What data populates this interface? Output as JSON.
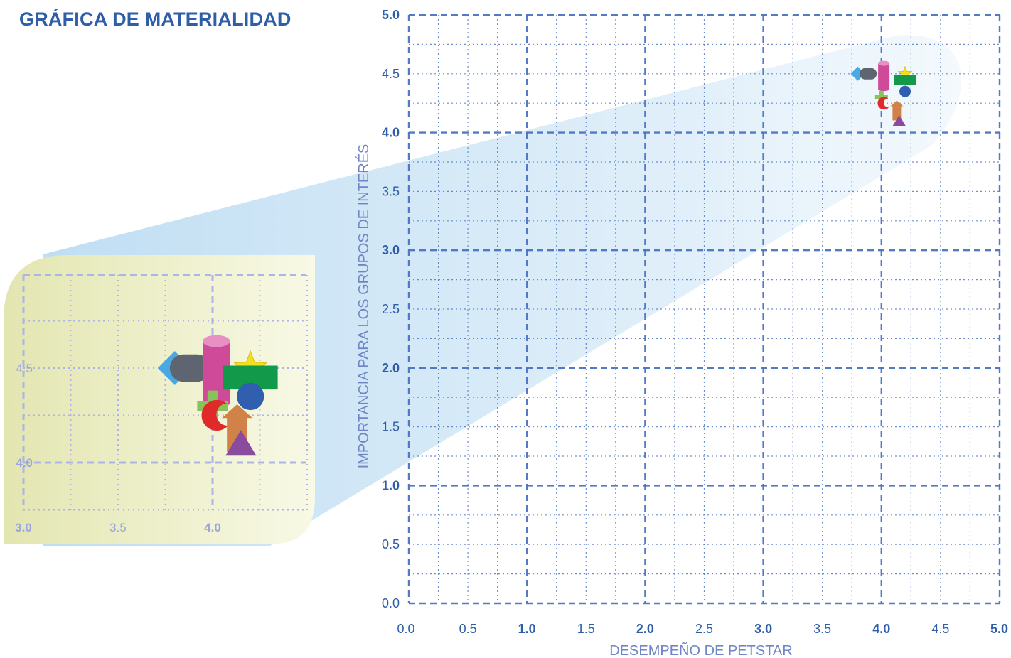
{
  "title": "GRÁFICA DE MATERIALIDAD",
  "chart_data": {
    "type": "scatter",
    "title": "GRÁFICA DE MATERIALIDAD",
    "xlabel": "DESEMPEÑO DE PETSTAR",
    "ylabel": "IMPORTANCIA PARA LOS GRUPOS DE INTERÉS",
    "xlim": [
      0,
      5
    ],
    "ylim": [
      0,
      5
    ],
    "grid": true,
    "x_ticks": [
      "0.0",
      "0.5",
      "1.0",
      "1.5",
      "2.0",
      "2.5",
      "3.0",
      "3.5",
      "4.0",
      "4.5",
      "5.0"
    ],
    "y_ticks": [
      "0.0",
      "0.5",
      "1.0",
      "1.5",
      "2.0",
      "2.5",
      "3.0",
      "3.5",
      "4.0",
      "4.5",
      "5.0"
    ],
    "points": [
      {
        "shape": "diamond",
        "color": "#4aa9e3",
        "x": 3.8,
        "y": 4.5
      },
      {
        "shape": "capsule",
        "color": "#5e6570",
        "x": 3.9,
        "y": 4.5
      },
      {
        "shape": "cylinder",
        "color": "#d04a9a",
        "x": 4.02,
        "y": 4.48
      },
      {
        "shape": "star",
        "color": "#f2df1e",
        "x": 4.2,
        "y": 4.5
      },
      {
        "shape": "rectangle",
        "color": "#13994a",
        "x": 4.2,
        "y": 4.45
      },
      {
        "shape": "circle",
        "color": "#2f5fae",
        "x": 4.2,
        "y": 4.35
      },
      {
        "shape": "cross",
        "color": "#87c25a",
        "x": 4.0,
        "y": 4.3
      },
      {
        "shape": "crescent",
        "color": "#e02a2a",
        "x": 4.02,
        "y": 4.25
      },
      {
        "shape": "arrow",
        "color": "#d08248",
        "x": 4.13,
        "y": 4.2
      },
      {
        "shape": "triangle",
        "color": "#8a4a9e",
        "x": 4.15,
        "y": 4.1
      }
    ],
    "zoom_inset": {
      "xlim": [
        3.0,
        4.0
      ],
      "ylim": [
        4.0,
        4.5
      ],
      "x_ticks": [
        "3.0",
        "3.5",
        "4.0"
      ],
      "y_ticks": [
        "4.0",
        "4.5"
      ]
    }
  },
  "colors": {
    "accent": "#2f5ea8",
    "grid": "#4a73c2",
    "axis_title": "#6f86c6",
    "inset_start": "#e6e9b8",
    "inset_end": "#f7f8e4",
    "inset_grid": "#aeb5e6"
  }
}
